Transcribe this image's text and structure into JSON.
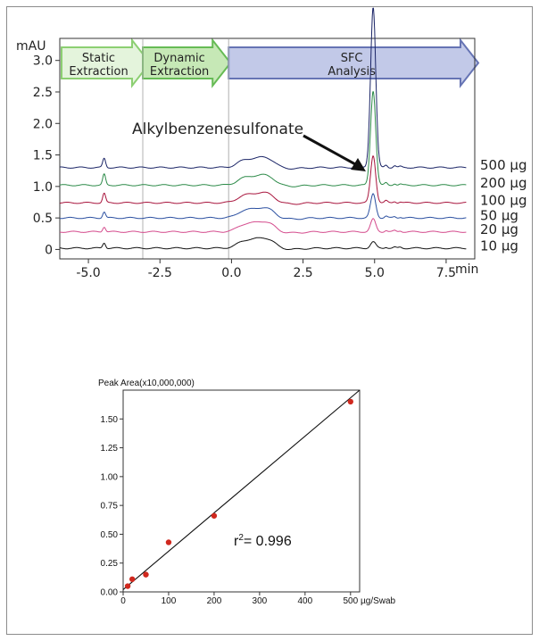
{
  "chart_data": [
    {
      "type": "line",
      "yunit": "mAU",
      "xunit": "min",
      "xlim": [
        -6,
        8.5
      ],
      "ylim": [
        -0.15,
        3.35
      ],
      "xticks": [
        "-5.0",
        "-2.5",
        "0.0",
        "2.5",
        "5.0",
        "7.5"
      ],
      "yticks": [
        "0",
        "0.5",
        "1.0",
        "1.5",
        "2.0",
        "2.5",
        "3.0"
      ],
      "phases": [
        {
          "label1": "Static",
          "label2": "Extraction",
          "color": "#8ccf72",
          "fill": "#e4f4dc"
        },
        {
          "label1": "Dynamic",
          "label2": "Extraction",
          "color": "#66bb55",
          "fill": "#c6e8b6"
        },
        {
          "label1": "SFC",
          "label2": "Analysis",
          "color": "#6674b4",
          "fill": "#c2c9e8"
        }
      ],
      "phase_boundaries": [
        -3.1,
        -0.1
      ],
      "annotation": "Alkylbenzenesulfonate",
      "series": [
        {
          "name": "10 µg",
          "color": "#111111",
          "baseline": 0.02,
          "main_peak": 0.1
        },
        {
          "name": "20 µg",
          "color": "#d44a8c",
          "baseline": 0.28,
          "main_peak": 0.2
        },
        {
          "name": "50 µg",
          "color": "#2a4fa0",
          "baseline": 0.5,
          "main_peak": 0.38
        },
        {
          "name": "100 µg",
          "color": "#a8143c",
          "baseline": 0.74,
          "main_peak": 0.75
        },
        {
          "name": "200 µg",
          "color": "#2c8a48",
          "baseline": 1.02,
          "main_peak": 1.5
        },
        {
          "name": "500 µg",
          "color": "#1a2466",
          "baseline": 1.3,
          "main_peak": 2.55
        }
      ]
    },
    {
      "type": "scatter",
      "ylabel": "Peak Area(x10,000,000)",
      "xlabel": "µg/Swab",
      "xlim": [
        0,
        520
      ],
      "ylim": [
        0,
        1.75
      ],
      "xticks": [
        "0",
        "100",
        "200",
        "300",
        "400",
        "500"
      ],
      "yticks": [
        "0.00",
        "0.25",
        "0.50",
        "0.75",
        "1.00",
        "1.25",
        "1.50"
      ],
      "r2_prefix": "r",
      "r2_sup": "2",
      "r2_value": "= 0.996",
      "point_color": "#d0281e",
      "points": [
        {
          "x": 10,
          "y": 0.05
        },
        {
          "x": 20,
          "y": 0.11
        },
        {
          "x": 50,
          "y": 0.15
        },
        {
          "x": 100,
          "y": 0.43
        },
        {
          "x": 200,
          "y": 0.66
        },
        {
          "x": 500,
          "y": 1.65
        }
      ],
      "fit": {
        "x0": 0,
        "y0": 0.02,
        "x1": 520,
        "y1": 1.75
      }
    }
  ]
}
